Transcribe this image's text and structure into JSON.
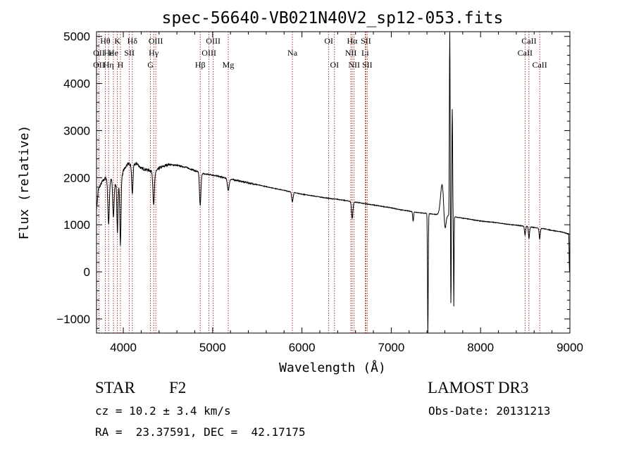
{
  "chart_data": {
    "type": "line",
    "title": "spec-56640-VB021N40V2_sp12-053.fits",
    "xlabel": "Wavelength (Å)",
    "ylabel": "Flux (relative)",
    "xlim": [
      3700,
      9000
    ],
    "ylim": [
      -1300,
      5100
    ],
    "xticks": [
      4000,
      5000,
      6000,
      7000,
      8000,
      9000
    ],
    "yticks": [
      -1000,
      0,
      1000,
      2000,
      3000,
      4000,
      5000
    ],
    "continuum": [
      [
        3700,
        1300
      ],
      [
        3720,
        1750
      ],
      [
        3760,
        1900
      ],
      [
        3800,
        2000
      ],
      [
        3840,
        1900
      ],
      [
        3880,
        2000
      ],
      [
        3920,
        1850
      ],
      [
        3960,
        1800
      ],
      [
        4000,
        2150
      ],
      [
        4050,
        2300
      ],
      [
        4100,
        2250
      ],
      [
        4150,
        2300
      ],
      [
        4200,
        2200
      ],
      [
        4300,
        2150
      ],
      [
        4350,
        2100
      ],
      [
        4400,
        2200
      ],
      [
        4500,
        2280
      ],
      [
        4600,
        2260
      ],
      [
        4700,
        2220
      ],
      [
        4800,
        2150
      ],
      [
        4900,
        2080
      ],
      [
        5000,
        2060
      ],
      [
        5100,
        2010
      ],
      [
        5200,
        1970
      ],
      [
        5300,
        1930
      ],
      [
        5400,
        1890
      ],
      [
        5500,
        1850
      ],
      [
        5600,
        1810
      ],
      [
        5700,
        1770
      ],
      [
        5800,
        1730
      ],
      [
        5900,
        1690
      ],
      [
        6000,
        1650
      ],
      [
        6100,
        1620
      ],
      [
        6200,
        1590
      ],
      [
        6300,
        1560
      ],
      [
        6400,
        1540
      ],
      [
        6500,
        1510
      ],
      [
        6600,
        1480
      ],
      [
        6700,
        1450
      ],
      [
        6800,
        1420
      ],
      [
        6900,
        1390
      ],
      [
        7000,
        1360
      ],
      [
        7100,
        1320
      ],
      [
        7200,
        1290
      ],
      [
        7300,
        1260
      ],
      [
        7400,
        1240
      ],
      [
        7500,
        1220
      ],
      [
        7600,
        1210
      ],
      [
        7700,
        1170
      ],
      [
        7800,
        1140
      ],
      [
        7900,
        1110
      ],
      [
        8000,
        1080
      ],
      [
        8100,
        1060
      ],
      [
        8200,
        1040
      ],
      [
        8300,
        1010
      ],
      [
        8400,
        990
      ],
      [
        8500,
        970
      ],
      [
        8600,
        940
      ],
      [
        8700,
        920
      ],
      [
        8800,
        880
      ],
      [
        8900,
        850
      ],
      [
        9000,
        800
      ]
    ],
    "features": [
      {
        "c": 3835,
        "w": 8,
        "d": 900
      },
      {
        "c": 3889,
        "w": 8,
        "d": 800
      },
      {
        "c": 3934,
        "w": 6,
        "d": 1000
      },
      {
        "c": 3968,
        "w": 6,
        "d": 1300
      },
      {
        "c": 4101,
        "w": 7,
        "d": 600
      },
      {
        "c": 4340,
        "w": 8,
        "d": 700
      },
      {
        "c": 4861,
        "w": 8,
        "d": 700
      },
      {
        "c": 5175,
        "w": 10,
        "d": 250
      },
      {
        "c": 5893,
        "w": 8,
        "d": 200
      },
      {
        "c": 6563,
        "w": 8,
        "d": 350
      },
      {
        "c": 7245,
        "w": 5,
        "d": 200
      },
      {
        "c": 7410,
        "w": 4,
        "d": 2600
      },
      {
        "c": 7570,
        "w": 18,
        "d": -650
      },
      {
        "c": 7600,
        "w": 12,
        "d": 400
      },
      {
        "c": 7655,
        "w": 4,
        "d": -3900
      },
      {
        "c": 7668,
        "w": 3,
        "d": 1900
      },
      {
        "c": 7683,
        "w": 4,
        "d": -2300
      },
      {
        "c": 7700,
        "w": 3,
        "d": 1900
      },
      {
        "c": 8498,
        "w": 6,
        "d": 200
      },
      {
        "c": 8542,
        "w": 6,
        "d": 250
      },
      {
        "c": 8662,
        "w": 6,
        "d": 230
      },
      {
        "c": 8995,
        "w": 3,
        "d": 800
      }
    ],
    "line_labels": [
      {
        "text": "Hθ",
        "x": 3798,
        "row": 1
      },
      {
        "text": "OII",
        "x": 3727,
        "row": 2
      },
      {
        "text": "OII",
        "x": 3727,
        "row": 3
      },
      {
        "text": "Hε",
        "x": 3835,
        "row": 2
      },
      {
        "text": "Hη",
        "x": 3835,
        "row": 3
      },
      {
        "text": "K",
        "x": 3934,
        "row": 1
      },
      {
        "text": "He",
        "x": 3889,
        "row": 2
      },
      {
        "text": "Hδ",
        "x": 4101,
        "row": 1
      },
      {
        "text": "SII",
        "x": 4068,
        "row": 2
      },
      {
        "text": "H",
        "x": 3968,
        "row": 3
      },
      {
        "text": "OIII",
        "x": 4363,
        "row": 1
      },
      {
        "text": "Hγ",
        "x": 4340,
        "row": 2
      },
      {
        "text": "G",
        "x": 4304,
        "row": 3
      },
      {
        "text": "OIII",
        "x": 5007,
        "row": 1
      },
      {
        "text": "OIII",
        "x": 4959,
        "row": 2
      },
      {
        "text": "Hβ",
        "x": 4861,
        "row": 3
      },
      {
        "text": "Mg",
        "x": 5175,
        "row": 3
      },
      {
        "text": "Na",
        "x": 5893,
        "row": 2
      },
      {
        "text": "OI",
        "x": 6300,
        "row": 1
      },
      {
        "text": "OI",
        "x": 6364,
        "row": 3
      },
      {
        "text": "Hα",
        "x": 6563,
        "row": 1
      },
      {
        "text": "SII",
        "x": 6716,
        "row": 1
      },
      {
        "text": "NII",
        "x": 6548,
        "row": 2
      },
      {
        "text": "Li",
        "x": 6708,
        "row": 2
      },
      {
        "text": "NII",
        "x": 6584,
        "row": 3
      },
      {
        "text": "SII",
        "x": 6731,
        "row": 3
      },
      {
        "text": "CaII",
        "x": 8542,
        "row": 1
      },
      {
        "text": "CaII",
        "x": 8498,
        "row": 2
      },
      {
        "text": "CaII",
        "x": 8662,
        "row": 3
      }
    ],
    "marker_lines": [
      3727,
      3798,
      3835,
      3889,
      3934,
      3968,
      4068,
      4101,
      4304,
      4340,
      4363,
      4861,
      4959,
      5007,
      5175,
      5893,
      6300,
      6364,
      6548,
      6563,
      6584,
      6708,
      6716,
      6731,
      8498,
      8542,
      8662
    ]
  },
  "info": {
    "class_label": "STAR",
    "subclass": "F2",
    "survey": "LAMOST DR3",
    "cz": "cz = 10.2 ± 3.4 km/s",
    "obs_date": "Obs-Date: 20131213",
    "coords": "RA =  23.37591, DEC =  42.17175"
  },
  "colors": {
    "spectrum": "#000000",
    "marker": "#8b0000",
    "axis": "#000000"
  }
}
